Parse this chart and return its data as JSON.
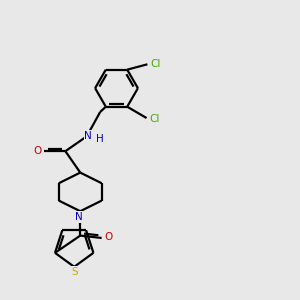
{
  "bg_color": "#e8e8e8",
  "bond_color": "#000000",
  "N_color": "#0000cc",
  "O_color": "#cc0000",
  "S_color": "#ccaa00",
  "Cl_color": "#44aa00",
  "line_width": 1.6,
  "fig_size": [
    3.0,
    3.0
  ],
  "dpi": 100,
  "xlim": [
    0,
    10
  ],
  "ylim": [
    0,
    10
  ]
}
